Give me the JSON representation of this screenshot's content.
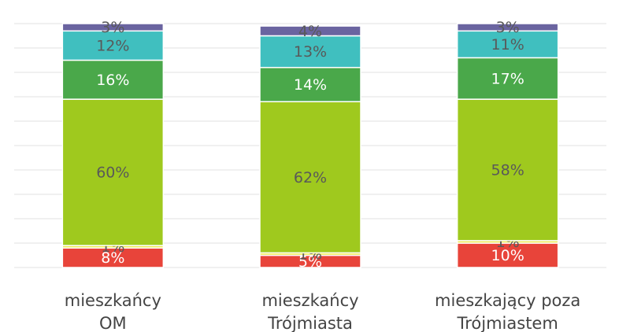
{
  "chart_data": {
    "type": "stacked_bar",
    "categories": [
      [
        "mieszkańcy",
        "OM"
      ],
      [
        "mieszkańcy",
        "Trójmiasta"
      ],
      [
        "mieszkający poza",
        "Trójmiastem"
      ]
    ],
    "series": [
      {
        "color": "#e8443a",
        "label_color": "#ffffff",
        "values": [
          8,
          5,
          10
        ],
        "value_labels": [
          "8%",
          "5%",
          "10%"
        ]
      },
      {
        "color": "#eee84a",
        "label_color": "#595959",
        "values": [
          1,
          1,
          1
        ],
        "value_labels": [
          "1%",
          "1%",
          "1%"
        ]
      },
      {
        "color": "#9fc91e",
        "label_color": "#595959",
        "values": [
          60,
          62,
          58
        ],
        "value_labels": [
          "60%",
          "62%",
          "58%"
        ]
      },
      {
        "color": "#4aa84a",
        "label_color": "#ffffff",
        "values": [
          16,
          14,
          17
        ],
        "value_labels": [
          "16%",
          "14%",
          "17%"
        ]
      },
      {
        "color": "#40bfbf",
        "label_color": "#595959",
        "values": [
          12,
          13,
          11
        ],
        "value_labels": [
          "12%",
          "13%",
          "11%"
        ]
      },
      {
        "color": "#6a64a0",
        "label_color": "#595959",
        "values": [
          3,
          4,
          3
        ],
        "value_labels": [
          "3%",
          "4%",
          "3%"
        ]
      }
    ],
    "ylim": [
      0,
      100
    ],
    "yticks": [
      0,
      10,
      20,
      30,
      40,
      50,
      60,
      70,
      80,
      90,
      100
    ],
    "grid": true
  }
}
